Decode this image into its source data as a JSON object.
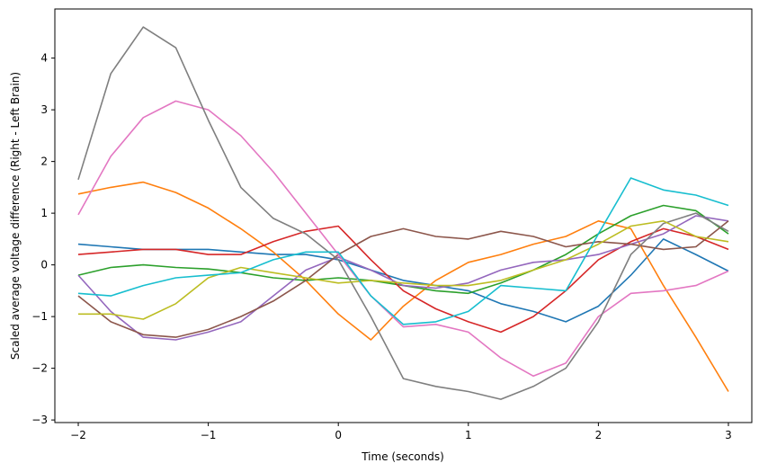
{
  "chart_data": {
    "type": "line",
    "title": "",
    "xlabel": "Time (seconds)",
    "ylabel": "Scaled average voltage difference (Right - Left Brain)",
    "xlim": [
      -2.18,
      3.18
    ],
    "ylim": [
      -3.05,
      4.95
    ],
    "xticks": [
      -2,
      -1,
      0,
      1,
      2,
      3
    ],
    "xtick_labels": [
      "−2",
      "−1",
      "0",
      "1",
      "2",
      "3"
    ],
    "yticks": [
      -3,
      -2,
      -1,
      0,
      1,
      2,
      3,
      4
    ],
    "ytick_labels": [
      "−3",
      "−2",
      "−1",
      "0",
      "1",
      "2",
      "3",
      "4"
    ],
    "grid": false,
    "legend": "none",
    "series": [
      {
        "color": "#1f77b4",
        "x": [
          -2.0,
          -1.75,
          -1.5,
          -1.25,
          -1.0,
          -0.75,
          -0.5,
          -0.25,
          0.0,
          0.25,
          0.5,
          0.75,
          1.0,
          1.25,
          1.5,
          1.75,
          2.0,
          2.25,
          2.5,
          2.75,
          3.0
        ],
        "y": [
          0.4,
          0.35,
          0.3,
          0.3,
          0.3,
          0.25,
          0.2,
          0.2,
          0.1,
          -0.1,
          -0.3,
          -0.4,
          -0.5,
          -0.75,
          -0.9,
          -1.1,
          -0.8,
          -0.2,
          0.5,
          0.2,
          -0.12
        ]
      },
      {
        "color": "#ff7f0e",
        "x": [
          -2.0,
          -1.75,
          -1.5,
          -1.25,
          -1.0,
          -0.75,
          -0.5,
          -0.25,
          0.0,
          0.25,
          0.5,
          0.75,
          1.0,
          1.25,
          1.5,
          1.75,
          2.0,
          2.25,
          2.5,
          2.75,
          3.0
        ],
        "y": [
          1.37,
          1.5,
          1.6,
          1.4,
          1.1,
          0.7,
          0.25,
          -0.3,
          -0.95,
          -1.45,
          -0.8,
          -0.3,
          0.05,
          0.2,
          0.4,
          0.55,
          0.85,
          0.7,
          -0.4,
          -1.4,
          -2.45
        ]
      },
      {
        "color": "#2ca02c",
        "x": [
          -2.0,
          -1.75,
          -1.5,
          -1.25,
          -1.0,
          -0.75,
          -0.5,
          -0.25,
          0.0,
          0.25,
          0.5,
          0.75,
          1.0,
          1.25,
          1.5,
          1.75,
          2.0,
          2.25,
          2.5,
          2.75,
          3.0
        ],
        "y": [
          -0.2,
          -0.05,
          0.0,
          -0.05,
          -0.08,
          -0.15,
          -0.25,
          -0.3,
          -0.25,
          -0.3,
          -0.4,
          -0.5,
          -0.55,
          -0.35,
          -0.1,
          0.2,
          0.6,
          0.95,
          1.15,
          1.05,
          0.6
        ]
      },
      {
        "color": "#d62728",
        "x": [
          -2.0,
          -1.75,
          -1.5,
          -1.25,
          -1.0,
          -0.75,
          -0.5,
          -0.25,
          0.0,
          0.25,
          0.5,
          0.75,
          1.0,
          1.25,
          1.5,
          1.75,
          2.0,
          2.25,
          2.5,
          2.75,
          3.0
        ],
        "y": [
          0.2,
          0.25,
          0.3,
          0.3,
          0.2,
          0.2,
          0.45,
          0.65,
          0.75,
          0.1,
          -0.5,
          -0.85,
          -1.1,
          -1.3,
          -1.0,
          -0.5,
          0.1,
          0.45,
          0.7,
          0.55,
          0.3
        ]
      },
      {
        "color": "#9467bd",
        "x": [
          -2.0,
          -1.75,
          -1.5,
          -1.25,
          -1.0,
          -0.75,
          -0.5,
          -0.25,
          0.0,
          0.25,
          0.5,
          0.75,
          1.0,
          1.25,
          1.5,
          1.75,
          2.0,
          2.25,
          2.5,
          2.75,
          3.0
        ],
        "y": [
          -0.2,
          -0.9,
          -1.4,
          -1.45,
          -1.3,
          -1.1,
          -0.6,
          -0.1,
          0.15,
          -0.1,
          -0.4,
          -0.45,
          -0.35,
          -0.1,
          0.05,
          0.1,
          0.2,
          0.4,
          0.6,
          0.95,
          0.85
        ]
      },
      {
        "color": "#8c564b",
        "x": [
          -2.0,
          -1.75,
          -1.5,
          -1.25,
          -1.0,
          -0.75,
          -0.5,
          -0.25,
          0.0,
          0.25,
          0.5,
          0.75,
          1.0,
          1.25,
          1.5,
          1.75,
          2.0,
          2.25,
          2.5,
          2.75,
          3.0
        ],
        "y": [
          -0.6,
          -1.1,
          -1.35,
          -1.4,
          -1.25,
          -1.0,
          -0.7,
          -0.3,
          0.2,
          0.55,
          0.7,
          0.55,
          0.5,
          0.65,
          0.55,
          0.35,
          0.45,
          0.4,
          0.3,
          0.35,
          0.85
        ]
      },
      {
        "color": "#e377c2",
        "x": [
          -2.0,
          -1.75,
          -1.5,
          -1.25,
          -1.0,
          -0.75,
          -0.5,
          -0.25,
          0.0,
          0.25,
          0.5,
          0.75,
          1.0,
          1.25,
          1.5,
          1.75,
          2.0,
          2.25,
          2.5,
          2.75,
          3.0
        ],
        "y": [
          0.97,
          2.1,
          2.85,
          3.17,
          3.0,
          2.5,
          1.8,
          1.0,
          0.2,
          -0.6,
          -1.2,
          -1.15,
          -1.3,
          -1.8,
          -2.15,
          -1.9,
          -1.0,
          -0.55,
          -0.5,
          -0.4,
          -0.12
        ]
      },
      {
        "color": "#7f7f7f",
        "x": [
          -2.0,
          -1.75,
          -1.5,
          -1.25,
          -1.0,
          -0.75,
          -0.5,
          -0.25,
          0.0,
          0.25,
          0.5,
          0.75,
          1.0,
          1.25,
          1.5,
          1.75,
          2.0,
          2.25,
          2.5,
          2.75,
          3.0
        ],
        "y": [
          1.65,
          3.7,
          4.6,
          4.2,
          2.8,
          1.5,
          0.9,
          0.6,
          0.1,
          -1.0,
          -2.2,
          -2.35,
          -2.45,
          -2.6,
          -2.35,
          -2.0,
          -1.1,
          0.2,
          0.8,
          1.0,
          0.65
        ]
      },
      {
        "color": "#bcbd22",
        "x": [
          -2.0,
          -1.75,
          -1.5,
          -1.25,
          -1.0,
          -0.75,
          -0.5,
          -0.25,
          0.0,
          0.25,
          0.5,
          0.75,
          1.0,
          1.25,
          1.5,
          1.75,
          2.0,
          2.25,
          2.5,
          2.75,
          3.0
        ],
        "y": [
          -0.95,
          -0.95,
          -1.05,
          -0.75,
          -0.25,
          -0.05,
          -0.15,
          -0.25,
          -0.35,
          -0.3,
          -0.35,
          -0.4,
          -0.4,
          -0.3,
          -0.1,
          0.1,
          0.4,
          0.75,
          0.85,
          0.55,
          0.45
        ]
      },
      {
        "color": "#17becf",
        "x": [
          -2.0,
          -1.75,
          -1.5,
          -1.25,
          -1.0,
          -0.75,
          -0.5,
          -0.25,
          0.0,
          0.25,
          0.5,
          0.75,
          1.0,
          1.25,
          1.5,
          1.75,
          2.0,
          2.25,
          2.5,
          2.75,
          3.0
        ],
        "y": [
          -0.55,
          -0.6,
          -0.4,
          -0.25,
          -0.2,
          -0.15,
          0.1,
          0.25,
          0.25,
          -0.6,
          -1.15,
          -1.1,
          -0.9,
          -0.4,
          -0.45,
          -0.5,
          0.6,
          1.68,
          1.45,
          1.35,
          1.15
        ]
      }
    ]
  }
}
